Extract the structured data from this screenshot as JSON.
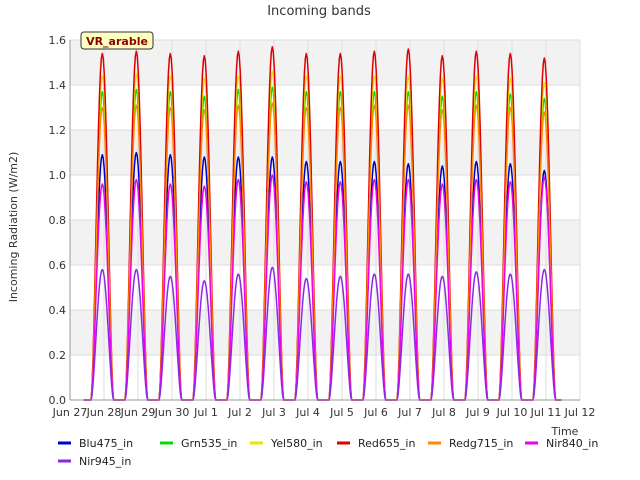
{
  "chart_data": {
    "type": "line",
    "title": "Incoming bands",
    "xlabel": "Time",
    "ylabel": "Incoming Radiation (W/m2)",
    "site_tag": "VR_arable",
    "ylim": [
      0,
      1.6
    ],
    "xlim": [
      "Jun 27",
      "Jul 12"
    ],
    "x_ticks": [
      "Jun 27",
      "Jun 28",
      "Jun 29",
      "Jun 30",
      "Jul 1",
      "Jul 2",
      "Jul 3",
      "Jul 4",
      "Jul 5",
      "Jul 6",
      "Jul 7",
      "Jul 8",
      "Jul 9",
      "Jul 10",
      "Jul 11",
      "Jul 12"
    ],
    "y_ticks": [
      "0.0",
      "0.2",
      "0.4",
      "0.6",
      "0.8",
      "1.0",
      "1.2",
      "1.4",
      "1.6"
    ],
    "grid": true,
    "legend_position": "bottom",
    "series_shape": "daily diurnal peaks (zero at night)",
    "peak_days": [
      "Jun 28",
      "Jun 29",
      "Jun 30",
      "Jul 1",
      "Jul 2",
      "Jul 3",
      "Jul 4",
      "Jul 5",
      "Jul 6",
      "Jul 7",
      "Jul 8",
      "Jul 9",
      "Jul 10",
      "Jul 11"
    ],
    "series": [
      {
        "name": "Blu475_in",
        "color": "#0000cc",
        "daily_peaks": [
          1.09,
          1.1,
          1.09,
          1.08,
          1.08,
          1.08,
          1.06,
          1.06,
          1.06,
          1.05,
          1.04,
          1.06,
          1.05,
          1.02
        ]
      },
      {
        "name": "Grn535_in",
        "color": "#00dd00",
        "daily_peaks": [
          1.37,
          1.38,
          1.37,
          1.35,
          1.38,
          1.39,
          1.37,
          1.37,
          1.37,
          1.37,
          1.35,
          1.37,
          1.36,
          1.34
        ]
      },
      {
        "name": "Yel580_in",
        "color": "#e6e600",
        "daily_peaks": [
          1.44,
          1.45,
          1.44,
          1.43,
          1.44,
          1.46,
          1.44,
          1.44,
          1.44,
          1.44,
          1.43,
          1.44,
          1.43,
          1.41
        ]
      },
      {
        "name": "Red655_in",
        "color": "#dd0000",
        "daily_peaks": [
          1.54,
          1.55,
          1.54,
          1.53,
          1.55,
          1.57,
          1.54,
          1.54,
          1.55,
          1.56,
          1.53,
          1.55,
          1.54,
          1.52
        ]
      },
      {
        "name": "Redg715_in",
        "color": "#ff8c00",
        "daily_peaks": [
          1.3,
          1.31,
          1.3,
          1.29,
          1.31,
          1.32,
          1.3,
          1.3,
          1.31,
          1.31,
          1.29,
          1.31,
          1.3,
          1.28
        ]
      },
      {
        "name": "Nir840_in",
        "color": "#ee00ee",
        "daily_peaks": [
          0.96,
          0.98,
          0.96,
          0.95,
          0.98,
          1.0,
          0.97,
          0.97,
          0.98,
          0.98,
          0.96,
          0.98,
          0.97,
          0.99
        ]
      },
      {
        "name": "Nir945_in",
        "color": "#8a2be2",
        "daily_peaks": [
          0.58,
          0.58,
          0.55,
          0.53,
          0.56,
          0.59,
          0.54,
          0.55,
          0.56,
          0.56,
          0.55,
          0.57,
          0.56,
          0.58
        ]
      }
    ]
  }
}
